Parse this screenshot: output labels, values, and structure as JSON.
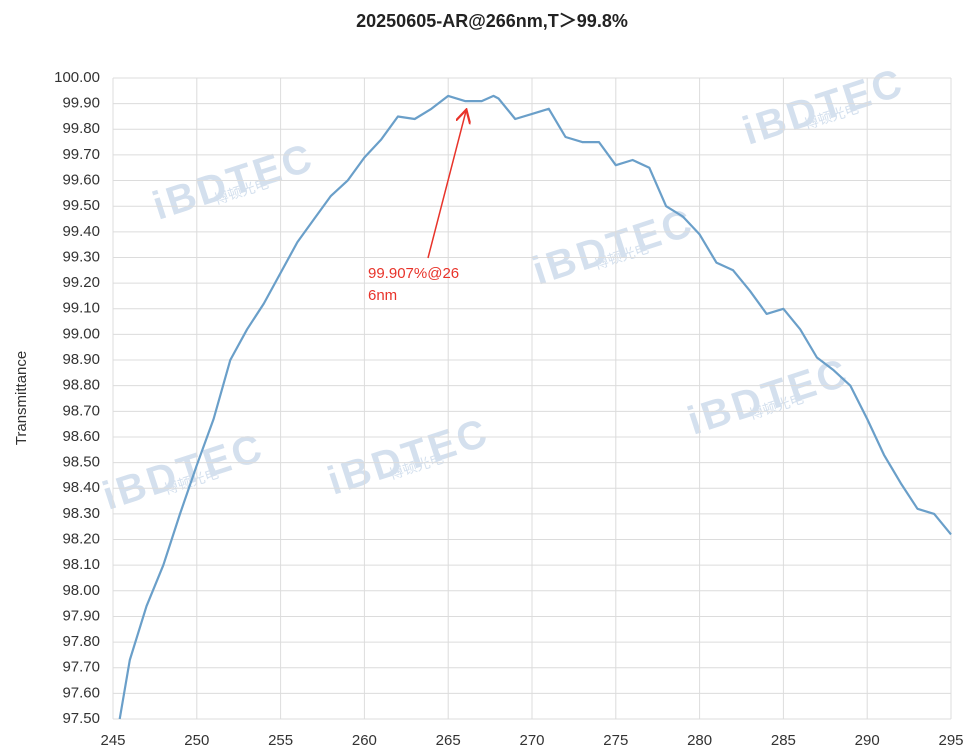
{
  "chart_data": {
    "type": "line",
    "title": "20250605-AR@266nm,T＞99.8%",
    "y_label": "Transmittance",
    "watermark": "iBDTEC",
    "watermark_sub": "博顿光电",
    "annotation": [
      "99.907%@26",
      "6nm"
    ],
    "annotation_color": "#e8332a",
    "x": [
      245.4,
      246,
      247,
      248,
      249,
      250,
      251,
      252,
      253,
      254,
      255,
      256,
      257,
      258,
      259,
      260,
      261,
      262,
      263,
      264,
      265,
      266,
      267,
      267.7,
      268,
      269,
      270,
      271,
      272,
      273,
      274,
      275,
      276,
      277,
      278,
      279,
      280,
      281,
      282,
      283,
      284,
      285,
      286,
      287,
      288,
      289,
      290,
      291,
      292,
      293,
      294,
      295
    ],
    "series": [
      {
        "name": "Transmittance",
        "color": "#6a9fc9",
        "values": [
          97.5,
          97.73,
          97.94,
          98.1,
          98.3,
          98.49,
          98.67,
          98.9,
          99.02,
          99.12,
          99.24,
          99.36,
          99.45,
          99.54,
          99.6,
          99.69,
          99.76,
          99.85,
          99.84,
          99.88,
          99.93,
          99.91,
          99.91,
          99.93,
          99.92,
          99.84,
          99.86,
          99.88,
          99.77,
          99.75,
          99.75,
          99.66,
          99.68,
          99.65,
          99.5,
          99.46,
          99.39,
          99.28,
          99.25,
          99.17,
          99.08,
          99.1,
          99.02,
          98.91,
          98.86,
          98.8,
          98.67,
          98.53,
          98.42,
          98.32,
          98.3,
          98.22
        ]
      }
    ],
    "xlim": [
      245,
      295
    ],
    "xticks": [
      245,
      250,
      255,
      260,
      265,
      270,
      275,
      280,
      285,
      290,
      295
    ],
    "ylim": [
      97.5,
      100
    ],
    "yticks": [
      {
        "value": 100,
        "label": "100.00"
      },
      {
        "value": 99.9,
        "label": "99.90"
      },
      {
        "value": 99.8,
        "label": "99.80"
      },
      {
        "value": 99.7,
        "label": "99.70"
      },
      {
        "value": 99.6,
        "label": "99.60"
      },
      {
        "value": 99.5,
        "label": "99.50"
      },
      {
        "value": 99.4,
        "label": "99.40"
      },
      {
        "value": 99.3,
        "label": "99.30"
      },
      {
        "value": 99.2,
        "label": "99.20"
      },
      {
        "value": 99.1,
        "label": "99.10"
      },
      {
        "value": 99,
        "label": "99.00"
      },
      {
        "value": 98.9,
        "label": "98.90"
      },
      {
        "value": 98.8,
        "label": "98.80"
      },
      {
        "value": 98.7,
        "label": "98.70"
      },
      {
        "value": 98.6,
        "label": "98.60"
      },
      {
        "value": 98.5,
        "label": "98.50"
      },
      {
        "value": 98.4,
        "label": "98.40"
      },
      {
        "value": 98.3,
        "label": "98.30"
      },
      {
        "value": 98.2,
        "label": "98.20"
      },
      {
        "value": 98.1,
        "label": "98.10"
      },
      {
        "value": 98,
        "label": "98.00"
      },
      {
        "value": 97.9,
        "label": "97.90"
      },
      {
        "value": 97.8,
        "label": "97.80"
      },
      {
        "value": 97.7,
        "label": "97.70"
      },
      {
        "value": 97.6,
        "label": "97.60"
      },
      {
        "value": 97.5,
        "label": "97.50"
      }
    ],
    "grid": true
  }
}
